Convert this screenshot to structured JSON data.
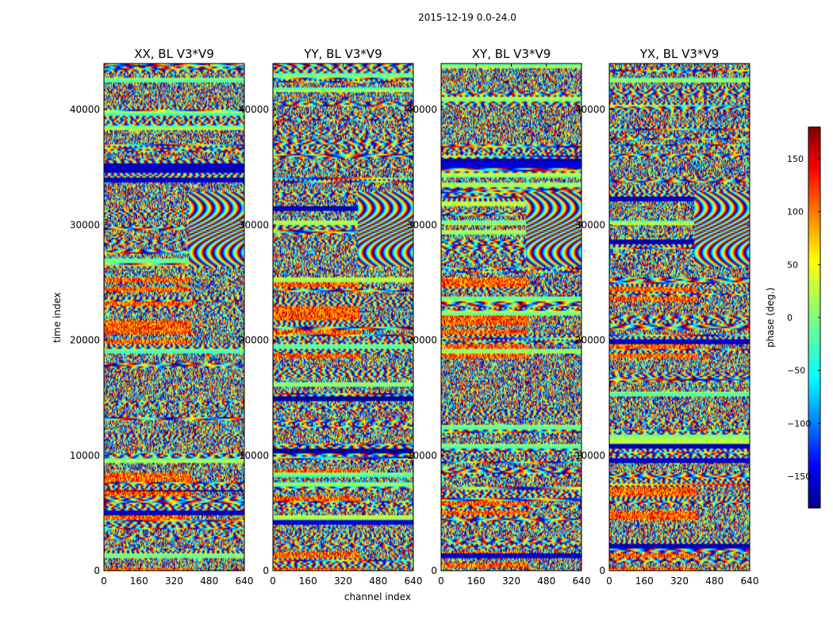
{
  "chart_data": {
    "type": "heatmap",
    "suptitle": "2015-12-19 0.0-24.0",
    "panels": [
      {
        "title": "XX, BL V3*V9"
      },
      {
        "title": "YY, BL V3*V9"
      },
      {
        "title": "XY, BL V3*V9"
      },
      {
        "title": "YX, BL V3*V9"
      }
    ],
    "xlabel": "channel index",
    "ylabel": "time index",
    "xlim": [
      0,
      640
    ],
    "ylim": [
      0,
      44000
    ],
    "xticks": [
      0,
      160,
      320,
      480,
      640
    ],
    "yticks": [
      0,
      10000,
      20000,
      30000,
      40000
    ],
    "colorbar": {
      "label": "phase (deg.)",
      "range": [
        -180,
        180
      ],
      "ticks": [
        -150,
        -100,
        -50,
        0,
        50,
        100,
        150
      ],
      "tick_labels": [
        "−150",
        "−100",
        "−50",
        "0",
        "50",
        "100",
        "150"
      ],
      "colormap": "jet"
    }
  }
}
